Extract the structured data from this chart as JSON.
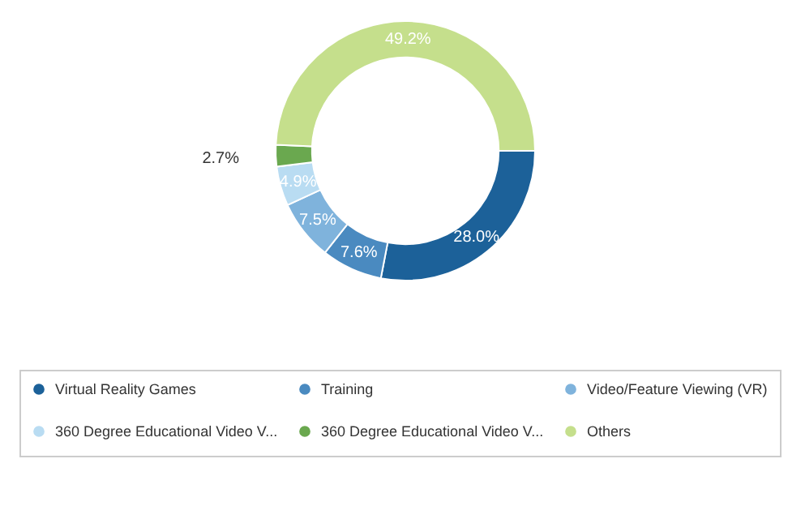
{
  "chart_data": {
    "type": "donut",
    "categories": [
      "Virtual Reality Games",
      "Training",
      "Video/Feature Viewing (VR)",
      "360 Degree Educational Video V...",
      "360 Degree Educational Video V...",
      "Others"
    ],
    "values": [
      28.0,
      7.6,
      7.5,
      4.9,
      2.7,
      49.2
    ],
    "value_labels": [
      "28.0%",
      "7.6%",
      "7.5%",
      "4.9%",
      "2.7%",
      "49.2%"
    ],
    "colors": [
      "#1c6199",
      "#4a8ac0",
      "#7fb3dc",
      "#b9dcf2",
      "#6aa84f",
      "#c5df8c"
    ],
    "legend": "bottom"
  }
}
